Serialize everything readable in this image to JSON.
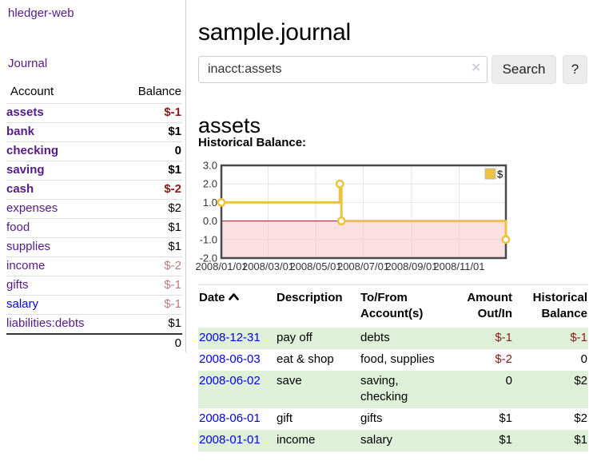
{
  "sidebar": {
    "brand": "hledger-web",
    "nav": {
      "journal": "Journal"
    },
    "table": {
      "headers": [
        "Account",
        "Balance"
      ]
    },
    "accounts": [
      {
        "name": "assets",
        "balance": "$-1"
      },
      {
        "name": "bank",
        "balance": "$1"
      },
      {
        "name": "checking",
        "balance": "0"
      },
      {
        "name": "saving",
        "balance": "$1"
      },
      {
        "name": "cash",
        "balance": "$-2"
      },
      {
        "name": "expenses",
        "balance": "$2"
      },
      {
        "name": "food",
        "balance": "$1"
      },
      {
        "name": "supplies",
        "balance": "$1"
      },
      {
        "name": "income",
        "balance": "$-2"
      },
      {
        "name": "gifts",
        "balance": "$-1"
      },
      {
        "name": "salary",
        "balance": "$-1"
      },
      {
        "name": "liabilities:debts",
        "balance": "$1"
      }
    ],
    "total": "0"
  },
  "header": {
    "title": "sample.journal"
  },
  "search": {
    "value": "inacct:assets",
    "clear_icon": "✕",
    "button_label": "Search",
    "help_label": "?"
  },
  "account_page": {
    "title": "assets",
    "chart_label": "Historical Balance:"
  },
  "chart_data": {
    "type": "line",
    "style": "steps",
    "title": "Historical Balance:",
    "series": [
      {
        "name": "$",
        "color": "#edc240",
        "points": [
          [
            "2008-01-01",
            1
          ],
          [
            "2008-06-01",
            2
          ],
          [
            "2008-06-03",
            0
          ],
          [
            "2008-12-31",
            -1
          ]
        ]
      }
    ],
    "x_range": [
      "2008-01-01",
      "2008-12-31"
    ],
    "xtick_labels": [
      "2008/01/01",
      "2008/03/01",
      "2008/05/01",
      "2008/07/01",
      "2008/09/01",
      "2008/11/01"
    ],
    "ylim": [
      -2,
      3
    ],
    "ytick_labels": [
      "3.0",
      "2.0",
      "1.0",
      "0.0",
      "-1.0",
      "-2.0"
    ],
    "grid": true,
    "legend_position": "top-right",
    "legend_label": "$",
    "negative_region_color": "#f6c7c7",
    "zero_line_color": "#8b0000",
    "grid_color": "#e6e6e6",
    "border_color": "#4a4a4a"
  },
  "register": {
    "headers": {
      "date": "Date",
      "description": "Description",
      "accounts": "To/From Account(s)",
      "amount": "Amount Out/In",
      "balance": "Historical Balance"
    },
    "rows": [
      {
        "date": "2008-12-31",
        "description": "pay off",
        "accounts": "debts",
        "amount": "$-1",
        "balance": "$-1"
      },
      {
        "date": "2008-06-03",
        "description": "eat & shop",
        "accounts": "food, supplies",
        "amount": "$-2",
        "balance": "0"
      },
      {
        "date": "2008-06-02",
        "description": "save",
        "accounts": "saving, checking",
        "amount": "0",
        "balance": "$2"
      },
      {
        "date": "2008-06-01",
        "description": "gift",
        "accounts": "gifts",
        "amount": "$1",
        "balance": "$2"
      },
      {
        "date": "2008-01-01",
        "description": "income",
        "accounts": "salary",
        "amount": "$1",
        "balance": "$1"
      }
    ]
  }
}
